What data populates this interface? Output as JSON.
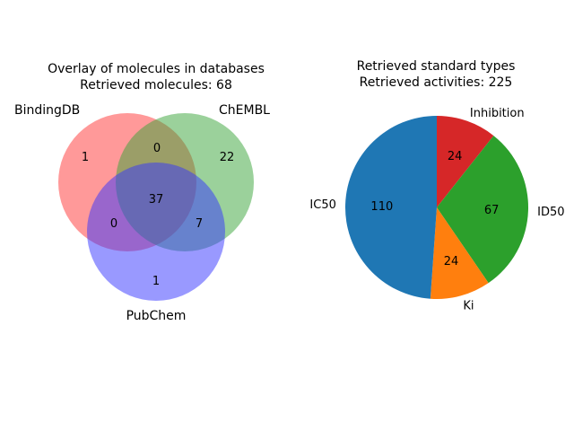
{
  "chart_data": [
    {
      "type": "venn",
      "title_line1": "Overlay of molecules in databases",
      "title_line2": "Retrieved molecules: 68",
      "sets": [
        "BindingDB",
        "ChEMBL",
        "PubChem"
      ],
      "colors": {
        "BindingDB": "#ff3333",
        "ChEMBL": "#37a337",
        "PubChem": "#3333ff"
      },
      "regions": {
        "BindingDB_only": "1",
        "ChEMBL_only": "22",
        "PubChem_only": "1",
        "BindingDB_ChEMBL": "0",
        "BindingDB_PubChem": "0",
        "ChEMBL_PubChem": "7",
        "all_three": "37"
      }
    },
    {
      "type": "pie",
      "title_line1": "Retrieved standard types",
      "title_line2": "Retrieved activities: 225",
      "start_angle_deg": 90,
      "direction": "clockwise",
      "slices": [
        {
          "label": "Inhibition",
          "value": 24,
          "color": "#d62728"
        },
        {
          "label": "ID50",
          "value": 67,
          "color": "#2ca02c"
        },
        {
          "label": "Ki",
          "value": 24,
          "color": "#ff7f0e"
        },
        {
          "label": "IC50",
          "value": 110,
          "color": "#1f77b4"
        }
      ]
    }
  ]
}
